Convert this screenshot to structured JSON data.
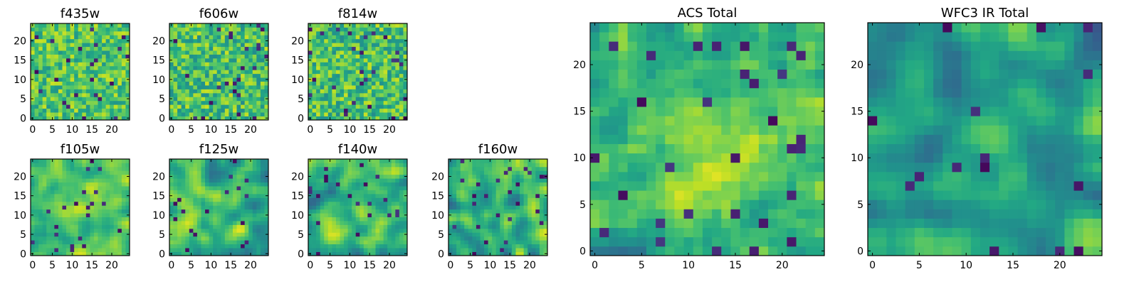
{
  "figure": {
    "colormap": "viridis",
    "colormap_stops": [
      "#440154",
      "#482475",
      "#414487",
      "#355f8d",
      "#2a788e",
      "#21918c",
      "#22a884",
      "#44bf70",
      "#7ad151",
      "#bddf26",
      "#fde725"
    ]
  },
  "chart_data": [
    {
      "type": "heatmap",
      "title": "f435w",
      "grid_size": 25,
      "xlim": [
        0,
        24
      ],
      "ylim": [
        0,
        24
      ],
      "xticks": [
        0,
        5,
        10,
        15,
        20
      ],
      "yticks": [
        0,
        5,
        10,
        15,
        20
      ],
      "seed": 11,
      "smoothing": 0,
      "mean": 0.72,
      "spread": 0.2
    },
    {
      "type": "heatmap",
      "title": "f606w",
      "grid_size": 25,
      "xlim": [
        0,
        24
      ],
      "ylim": [
        0,
        24
      ],
      "xticks": [
        0,
        5,
        10,
        15,
        20
      ],
      "yticks": [
        0,
        5,
        10,
        15,
        20
      ],
      "seed": 23,
      "smoothing": 0,
      "mean": 0.7,
      "spread": 0.22
    },
    {
      "type": "heatmap",
      "title": "f814w",
      "grid_size": 25,
      "xlim": [
        0,
        24
      ],
      "ylim": [
        0,
        24
      ],
      "xticks": [
        0,
        5,
        10,
        15,
        20
      ],
      "yticks": [
        0,
        5,
        10,
        15,
        20
      ],
      "seed": 37,
      "smoothing": 0,
      "mean": 0.7,
      "spread": 0.22
    },
    {
      "type": "heatmap",
      "title": "f105w",
      "grid_size": 25,
      "xlim": [
        0,
        24
      ],
      "ylim": [
        0,
        24
      ],
      "xticks": [
        0,
        5,
        10,
        15,
        20
      ],
      "yticks": [
        0,
        5,
        10,
        15,
        20
      ],
      "seed": 41,
      "smoothing": 2,
      "mean": 0.72,
      "spread": 0.22,
      "peak": [
        13,
        13
      ]
    },
    {
      "type": "heatmap",
      "title": "f125w",
      "grid_size": 25,
      "xlim": [
        0,
        24
      ],
      "ylim": [
        0,
        24
      ],
      "xticks": [
        0,
        5,
        10,
        15,
        20
      ],
      "yticks": [
        0,
        5,
        10,
        15,
        20
      ],
      "seed": 53,
      "smoothing": 2,
      "mean": 0.66,
      "spread": 0.3
    },
    {
      "type": "heatmap",
      "title": "f140w",
      "grid_size": 25,
      "xlim": [
        0,
        24
      ],
      "ylim": [
        0,
        24
      ],
      "xticks": [
        0,
        5,
        10,
        15,
        20
      ],
      "yticks": [
        0,
        5,
        10,
        15,
        20
      ],
      "seed": 67,
      "smoothing": 2,
      "mean": 0.64,
      "spread": 0.3
    },
    {
      "type": "heatmap",
      "title": "f160w",
      "grid_size": 25,
      "xlim": [
        0,
        24
      ],
      "ylim": [
        0,
        24
      ],
      "xticks": [
        0,
        5,
        10,
        15,
        20
      ],
      "yticks": [
        0,
        5,
        10,
        15,
        20
      ],
      "seed": 79,
      "smoothing": 2,
      "mean": 0.64,
      "spread": 0.3
    },
    {
      "type": "heatmap",
      "title": "ACS Total",
      "grid_size": 25,
      "xlim": [
        0,
        24
      ],
      "ylim": [
        0,
        24
      ],
      "xticks": [
        0,
        5,
        10,
        15,
        20
      ],
      "yticks": [
        0,
        5,
        10,
        15,
        20
      ],
      "seed": 97,
      "smoothing": 1,
      "mean": 0.62,
      "spread": 0.26,
      "peak": [
        13,
        10
      ]
    },
    {
      "type": "heatmap",
      "title": "WFC3 IR Total",
      "grid_size": 25,
      "xlim": [
        0,
        24
      ],
      "ylim": [
        0,
        24
      ],
      "xticks": [
        0,
        5,
        10,
        15,
        20
      ],
      "yticks": [
        0,
        5,
        10,
        15,
        20
      ],
      "seed": 103,
      "smoothing": 2,
      "mean": 0.55,
      "spread": 0.28,
      "peak": [
        12,
        11
      ]
    }
  ]
}
